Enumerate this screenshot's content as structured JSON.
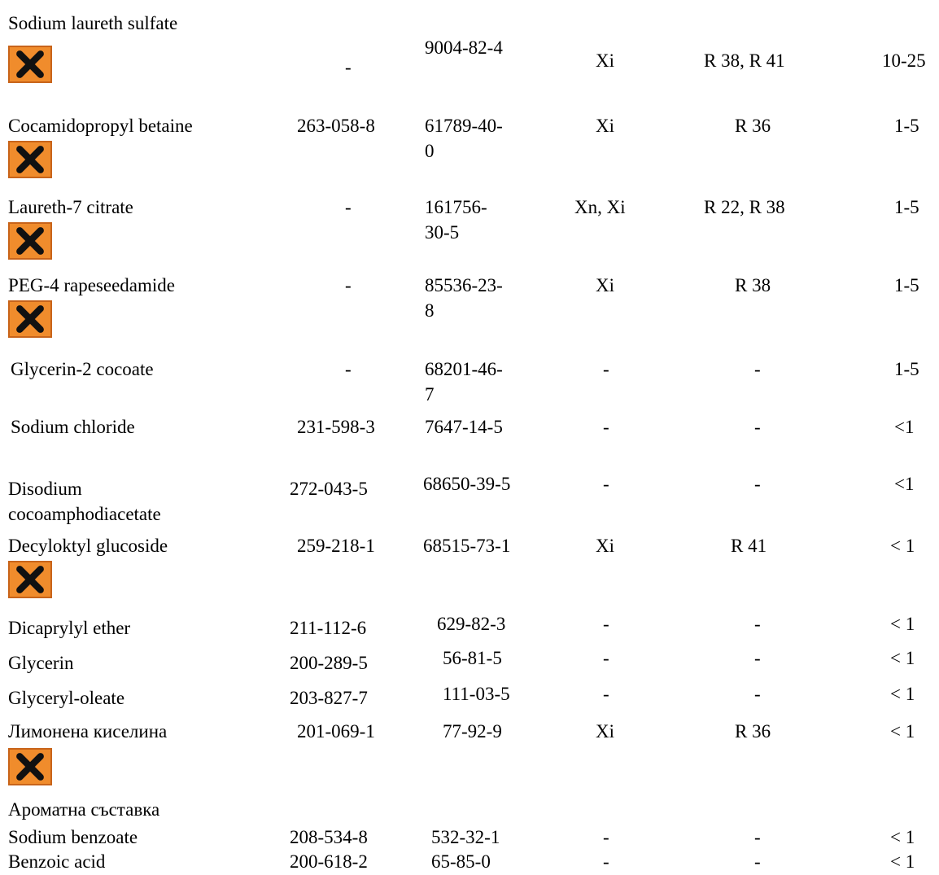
{
  "colors": {
    "hazard_fill": "#f08c2c",
    "hazard_border": "#c8641a",
    "hazard_cross": "#111111"
  },
  "rows": [
    {
      "name": "Sodium laureth sulfate",
      "ec": "-",
      "cas": "9004-82-4",
      "cls": "Xi",
      "r": "R 38, R 41",
      "conc": "10-25",
      "hazard_icon": "irritant-x-icon"
    },
    {
      "name": "Cocamidopropyl betaine",
      "ec": "263-058-8",
      "cas": "61789-40-0",
      "cas_l1": "61789-40-",
      "cas_l2": "0",
      "cls": "Xi",
      "r": "R 36",
      "conc": "1-5",
      "hazard_icon": "irritant-x-icon"
    },
    {
      "name": "Laureth-7 citrate",
      "ec": "-",
      "cas": "161756-30-5",
      "cas_l1": "161756-",
      "cas_l2": "30-5",
      "cls": "Xn, Xi",
      "r": "R 22, R 38",
      "conc": "1-5",
      "hazard_icon": "irritant-x-icon"
    },
    {
      "name": "PEG-4 rapeseedamide",
      "ec": "-",
      "cas": "85536-23-8",
      "cas_l1": "85536-23-",
      "cas_l2": "8",
      "cls": "Xi",
      "r": "R 38",
      "conc": "1-5",
      "hazard_icon": "irritant-x-icon"
    },
    {
      "name": "Glycerin-2 cocoate",
      "ec": "-",
      "cas": "68201-46-7",
      "cas_l1": "68201-46-",
      "cas_l2": "7",
      "cls": "-",
      "r": "-",
      "conc": "1-5"
    },
    {
      "name": "Sodium chloride",
      "ec": "231-598-3",
      "cas": "7647-14-5",
      "cls": "-",
      "r": "-",
      "conc": "<1"
    },
    {
      "name": "Disodium cocoamphodiacetate",
      "name_l1": "Disodium",
      "name_l2": "cocoamphodiacetate",
      "ec": "272-043-5",
      "cas": "68650-39-5",
      "cls": "-",
      "r": "-",
      "conc": "<1"
    },
    {
      "name": "Decyloktyl glucoside",
      "ec": "259-218-1",
      "cas": "68515-73-1",
      "cls": "Xi",
      "r": "R 41",
      "conc": "< 1",
      "hazard_icon": "irritant-x-icon"
    },
    {
      "name": "Dicaprylyl ether",
      "ec": "211-112-6",
      "cas": "629-82-3",
      "cls": "-",
      "r": "-",
      "conc": "< 1"
    },
    {
      "name": "Glycerin",
      "ec": "200-289-5",
      "cas": "56-81-5",
      "cls": "-",
      "r": "-",
      "conc": "< 1"
    },
    {
      "name": "Glyceryl-oleate",
      "ec": "203-827-7",
      "cas": "111-03-5",
      "cls": "-",
      "r": "-",
      "conc": "< 1"
    },
    {
      "name": "Лимонена киселина",
      "ec": "201-069-1",
      "cas": "77-92-9",
      "cls": "Xi",
      "r": "R 36",
      "conc": "< 1",
      "hazard_icon": "irritant-x-icon"
    },
    {
      "name": "Ароматна съставка"
    },
    {
      "name": "Sodium benzoate",
      "ec": "208-534-8",
      "cas": "532-32-1",
      "cls": "-",
      "r": "-",
      "conc": "< 1"
    },
    {
      "name": "Benzoic acid",
      "ec": "200-618-2",
      "cas": "65-85-0",
      "cls": "-",
      "r": "-",
      "conc": "< 1"
    }
  ]
}
